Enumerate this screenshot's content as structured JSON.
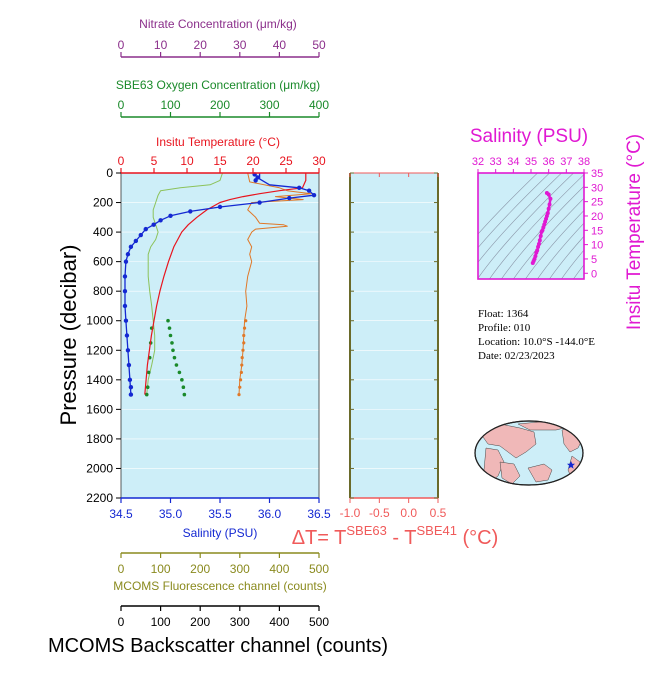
{
  "colors": {
    "nitrate": "#8b2f8b",
    "oxygen": "#1a8a2a",
    "temperature": "#e8141e",
    "salinity": "#1428d2",
    "fluorescence": "#8a8a1e",
    "backscatter": "#000000",
    "delta_t": "#f05a5a",
    "ts_title": "#e019d2",
    "panel_bg": "#cdeef8",
    "backscatter_line": "#e07828",
    "oxygen_line": "#8cc25a",
    "oxygen_pts": "#1a8a2a"
  },
  "main": {
    "ylabel": "Pressure (decibar)",
    "nitrate_label": "Nitrate Concentration (μm/kg)",
    "oxygen_label": "SBE63 Oxygen Concentration (μm/kg)",
    "temp_label": "Insitu Temperature (°C)",
    "salinity_label": "Salinity (PSU)",
    "fluorescence_label": "MCOMS Fluorescence channel (counts)",
    "backscatter_label": "MCOMS Backscatter channel (counts)"
  },
  "delta": {
    "label_prefix": "ΔT= T",
    "sup1": "SBE63",
    "mid": " - T",
    "sup2": "SBE41",
    "unit": " (°C)"
  },
  "ts": {
    "title": "Salinity (PSU)",
    "ylabel": "Insitu Temperature (°C)"
  },
  "info": {
    "float": "Float:   1364",
    "profile": "Profile:  010",
    "location": "Location:  10.0°S  -144.0°E",
    "date": "Date:  02/23/2023"
  },
  "chart_data": [
    {
      "type": "line",
      "name": "profile",
      "ylim": [
        2200,
        0
      ],
      "yticks": [
        0,
        200,
        400,
        600,
        800,
        1000,
        1200,
        1400,
        1600,
        1800,
        2000,
        2200
      ],
      "axes": {
        "nitrate": {
          "lim": [
            0,
            50
          ],
          "ticks": [
            0,
            10,
            20,
            30,
            40,
            50
          ]
        },
        "oxygen": {
          "lim": [
            0,
            400
          ],
          "ticks": [
            0,
            100,
            200,
            300,
            400
          ]
        },
        "temperature": {
          "lim": [
            0,
            30
          ],
          "ticks": [
            0,
            5,
            10,
            15,
            20,
            25,
            30
          ]
        },
        "salinity": {
          "lim": [
            34.5,
            36.5
          ],
          "ticks": [
            "34.5",
            "35.0",
            "35.5",
            "36.0",
            "36.5"
          ]
        },
        "fluorescence": {
          "lim": [
            0,
            500
          ],
          "ticks": [
            0,
            100,
            200,
            300,
            400,
            500
          ]
        },
        "backscatter": {
          "lim": [
            0,
            500
          ],
          "ticks": [
            0,
            100,
            200,
            300,
            400,
            500
          ]
        }
      },
      "temperature": {
        "p": [
          0,
          50,
          100,
          120,
          140,
          160,
          180,
          200,
          250,
          300,
          350,
          400,
          500,
          600,
          700,
          800,
          900,
          1000,
          1100,
          1200,
          1300,
          1400,
          1500
        ],
        "v": [
          28.0,
          28.0,
          27.5,
          24.0,
          21.0,
          18.5,
          16.5,
          15.0,
          13.0,
          11.5,
          10.2,
          9.2,
          8.0,
          7.2,
          6.5,
          5.9,
          5.4,
          5.0,
          4.6,
          4.3,
          4.0,
          3.8,
          3.6
        ]
      },
      "salinity_line": {
        "p": [
          0,
          40,
          80,
          100,
          120,
          150,
          170,
          200,
          230,
          260,
          290,
          320,
          350,
          380,
          420,
          460,
          500,
          550,
          600,
          700,
          800,
          900,
          1000,
          1100,
          1200,
          1300,
          1400,
          1500
        ],
        "v": [
          35.9,
          35.9,
          36.0,
          36.3,
          36.4,
          36.45,
          36.2,
          35.9,
          35.5,
          35.2,
          35.0,
          34.9,
          34.83,
          34.75,
          34.7,
          34.65,
          34.6,
          34.57,
          34.55,
          34.54,
          34.54,
          34.54,
          34.55,
          34.56,
          34.57,
          34.58,
          34.59,
          34.6
        ]
      },
      "salinity_points": {
        "p": [
          10,
          30,
          50,
          100,
          120,
          150,
          170,
          200,
          230,
          260,
          290,
          320,
          350,
          380,
          420,
          460,
          500,
          550,
          600,
          700,
          800,
          900,
          1000,
          1100,
          1200,
          1300,
          1400,
          1450,
          1500
        ],
        "v": [
          35.85,
          35.88,
          35.86,
          36.3,
          36.4,
          36.45,
          36.2,
          35.9,
          35.5,
          35.2,
          35.0,
          34.9,
          34.83,
          34.75,
          34.7,
          34.65,
          34.6,
          34.57,
          34.55,
          34.54,
          34.54,
          34.54,
          34.55,
          34.56,
          34.57,
          34.58,
          34.59,
          34.6,
          34.6
        ]
      },
      "oxygen_line": {
        "p": [
          0,
          50,
          80,
          100,
          120,
          150,
          200,
          250,
          300,
          350,
          400,
          450,
          500,
          550,
          600,
          700,
          800,
          900,
          1000,
          1100,
          1200,
          1300,
          1400,
          1500
        ],
        "v": [
          205,
          200,
          180,
          120,
          80,
          75,
          70,
          65,
          65,
          70,
          75,
          70,
          60,
          55,
          55,
          55,
          58,
          62,
          65,
          68,
          68,
          62,
          55,
          52
        ]
      },
      "oxygen_points": {
        "p": [
          1000,
          1050,
          1100,
          1150,
          1200,
          1250,
          1300,
          1350,
          1400,
          1450,
          1500,
          1050,
          1150,
          1250,
          1350,
          1450,
          1500
        ],
        "v": [
          95,
          98,
          100,
          103,
          105,
          108,
          112,
          118,
          123,
          126,
          128,
          62,
          60,
          58,
          56,
          54,
          52
        ]
      },
      "backscatter": {
        "p": [
          0,
          60,
          100,
          120,
          140,
          160,
          180,
          200,
          250,
          300,
          340,
          350,
          360,
          380,
          400,
          450,
          500,
          550,
          600,
          700,
          800,
          900,
          1000,
          1100,
          1200,
          1300,
          1400,
          1500
        ],
        "v": [
          320,
          325,
          400,
          420,
          480,
          390,
          460,
          330,
          320,
          340,
          350,
          410,
          420,
          340,
          330,
          320,
          330,
          325,
          330,
          320,
          315,
          318,
          312,
          310,
          308,
          305,
          300,
          298
        ]
      },
      "backscatter_points": {
        "p": [
          1000,
          1050,
          1100,
          1150,
          1200,
          1250,
          1300,
          1350,
          1400,
          1450,
          1500
        ],
        "v": [
          315,
          312,
          310,
          310,
          308,
          306,
          305,
          304,
          302,
          300,
          298
        ]
      }
    },
    {
      "type": "line",
      "name": "delta_t",
      "xlim": [
        -1.0,
        0.5
      ],
      "xticks": [
        "-1.0",
        "-0.5",
        "0.0",
        "0.5"
      ],
      "ylim": [
        2200,
        0
      ],
      "values": []
    },
    {
      "type": "scatter",
      "name": "ts_diagram",
      "xlim": [
        32,
        38
      ],
      "xticks": [
        32,
        33,
        34,
        35,
        36,
        37,
        38
      ],
      "ylim": [
        -2,
        35
      ],
      "yticks": [
        0,
        5,
        10,
        15,
        20,
        25,
        30,
        35
      ],
      "salinity": [
        35.1,
        35.15,
        35.2,
        35.25,
        35.3,
        35.35,
        35.4,
        35.45,
        35.5,
        35.55,
        35.6,
        35.65,
        35.7,
        35.75,
        35.8,
        35.85,
        35.9,
        35.95,
        36.0,
        36.05,
        36.1,
        36.0,
        35.9
      ],
      "temperature": [
        3.6,
        4.3,
        5.0,
        6.0,
        7.2,
        8.0,
        9.2,
        10.2,
        11.5,
        13.0,
        14.5,
        15.0,
        16.0,
        17.0,
        18.0,
        19.0,
        20.0,
        21.0,
        22.5,
        24.0,
        26.0,
        27.5,
        28.0
      ]
    }
  ]
}
